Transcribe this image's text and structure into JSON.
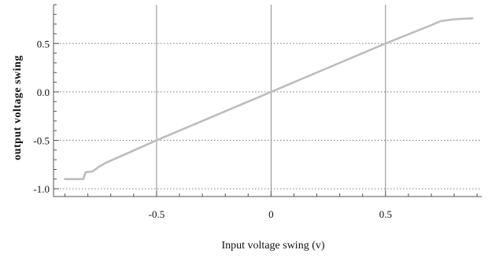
{
  "chart_data": {
    "type": "line",
    "title": "",
    "xlabel": "Input voltage swing (v)",
    "ylabel": "output voltage swing",
    "xlim": [
      -0.95,
      0.92
    ],
    "ylim": [
      -1.08,
      0.9
    ],
    "grid": true,
    "xticks": [
      -0.5,
      0,
      0.5
    ],
    "xtick_labels": [
      "-0.5",
      "0",
      "0.5"
    ],
    "yticks": [
      -1.0,
      -0.5,
      0.0,
      0.5
    ],
    "ytick_labels": [
      "-1.0",
      "-0.5",
      "0.0",
      "0.5"
    ],
    "colors": {
      "line": "#bdbdbd",
      "grid_solid": "#7f7f7f",
      "grid_dotted": "#808080",
      "axis": "#555555"
    },
    "series": [
      {
        "x": [
          -0.9,
          -0.82,
          -0.81,
          -0.78,
          -0.75,
          -0.72,
          -0.5,
          0.0,
          0.5,
          0.7,
          0.74,
          0.8,
          0.88
        ],
        "y": [
          -0.9,
          -0.9,
          -0.83,
          -0.82,
          -0.77,
          -0.73,
          -0.5,
          0.0,
          0.5,
          0.69,
          0.73,
          0.75,
          0.76
        ]
      }
    ]
  }
}
